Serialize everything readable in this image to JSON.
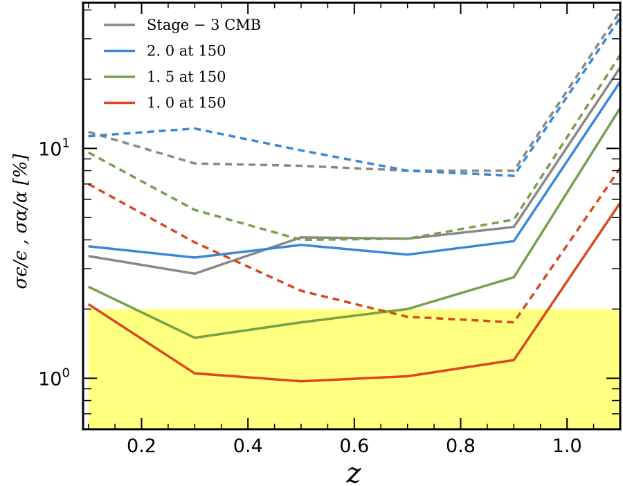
{
  "chart_data": {
    "type": "line",
    "xlabel": "z",
    "ylabel": "σϵ/ϵ , σα/α [%]",
    "xlim": [
      0.09,
      1.1
    ],
    "ylim": [
      0.6,
      43
    ],
    "yscale": "log",
    "x_ticks": [
      0.2,
      0.4,
      0.6,
      0.8,
      1.0
    ],
    "x_tick_labels": [
      "0.2",
      "0.4",
      "0.6",
      "0.8",
      "1.0"
    ],
    "y_ticks": [
      1,
      10
    ],
    "y_tick_labels_base": [
      "10",
      "10"
    ],
    "y_tick_labels_exp": [
      "0",
      "1"
    ],
    "x": [
      0.1,
      0.3,
      0.5,
      0.7,
      0.9,
      1.1
    ],
    "legend_position": "top-left",
    "highlight_band": {
      "y_max": 2.0,
      "color": "#ffff80"
    },
    "series": [
      {
        "name": "Stage − 3 CMB",
        "color": "#888888",
        "solid": [
          3.4,
          2.85,
          4.1,
          4.05,
          4.55,
          22.5
        ],
        "dashed": [
          11.8,
          8.6,
          8.4,
          8.0,
          8.0,
          39.5
        ]
      },
      {
        "name": "2. 0 at 150",
        "color": "#3a87d9",
        "solid": [
          3.75,
          3.35,
          3.8,
          3.45,
          3.95,
          19.5
        ],
        "dashed": [
          11.3,
          12.2,
          9.8,
          8.0,
          7.6,
          37.0
        ]
      },
      {
        "name": "1. 5 at 150",
        "color": "#76a04a",
        "solid": [
          2.5,
          1.5,
          1.75,
          2.0,
          2.75,
          15.0
        ],
        "dashed": [
          9.6,
          5.4,
          4.0,
          4.05,
          4.9,
          25.5
        ]
      },
      {
        "name": "1. 0 at 150",
        "color": "#d9481e",
        "solid": [
          2.1,
          1.05,
          0.97,
          1.02,
          1.2,
          5.8
        ],
        "dashed": [
          7.0,
          3.9,
          2.4,
          1.85,
          1.75,
          8.2
        ]
      }
    ]
  }
}
